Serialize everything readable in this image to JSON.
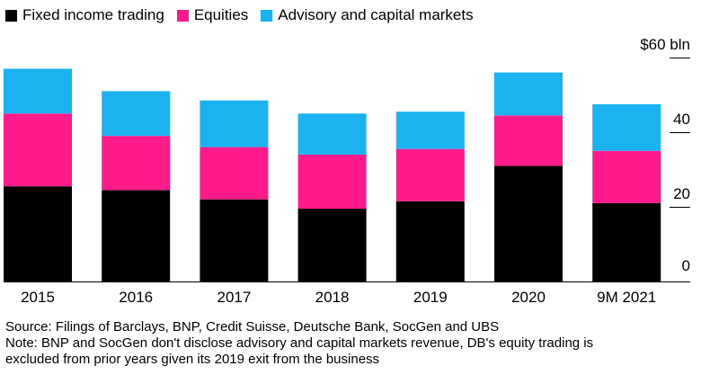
{
  "legend": [
    {
      "label": "Fixed income trading",
      "color": "#000000"
    },
    {
      "label": "Equities",
      "color": "#ff1a8c"
    },
    {
      "label": "Advisory and capital markets",
      "color": "#1ab2f0"
    }
  ],
  "chart_data": {
    "type": "bar",
    "stacked": true,
    "categories": [
      "2015",
      "2016",
      "2017",
      "2018",
      "2019",
      "2020",
      "9M 2021"
    ],
    "series": [
      {
        "name": "Fixed income trading",
        "color": "#000000",
        "values": [
          25.5,
          24.5,
          22.0,
          19.5,
          21.5,
          31.0,
          21.0
        ]
      },
      {
        "name": "Equities",
        "color": "#ff1a8c",
        "values": [
          19.5,
          14.5,
          14.0,
          14.5,
          14.0,
          13.5,
          14.0
        ]
      },
      {
        "name": "Advisory and capital markets",
        "color": "#1ab2f0",
        "values": [
          12.0,
          12.0,
          12.5,
          11.0,
          10.0,
          11.5,
          12.5
        ]
      }
    ],
    "yticks": [
      0,
      20,
      40,
      60
    ],
    "ytick_labels": [
      "0",
      "20",
      "40",
      "$60 bln"
    ],
    "ylim": [
      0,
      60
    ],
    "yaxis_side": "right",
    "grid": false,
    "legend_position": "top-left"
  },
  "notes": {
    "source": "Source: Filings of Barclays, BNP, Credit Suisse, Deutsche Bank, SocGen and UBS",
    "note_line1": "Note: BNP and SocGen don't disclose advisory and capital markets revenue, DB's equity trading is",
    "note_line2": "excluded from prior years given its 2019 exit from the business"
  }
}
